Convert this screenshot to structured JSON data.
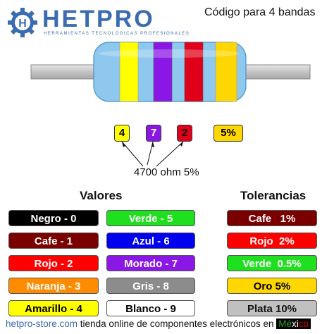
{
  "brand": {
    "name": "HETPRO",
    "tagline": "HERRAMIENTAS TECNOLÓGICAS PROFESIONALES",
    "logo_letter": "H"
  },
  "title": "Código para 4 bandas",
  "bands": {
    "digit1": {
      "label": "4",
      "color": "#ffff00"
    },
    "digit2": {
      "label": "7",
      "color": "#8a17e6"
    },
    "multiplier": {
      "label": "2",
      "color": "#e0001a"
    },
    "tolerance": {
      "label": "5%",
      "color": "#ffd700"
    }
  },
  "result": "4700 ohm 5%",
  "values_heading": "Valores",
  "tolerances_heading": "Tolerancias",
  "values": [
    {
      "label": "Negro - 0",
      "bg": "#000000",
      "fg": "#ffffff"
    },
    {
      "label": "Cafe - 1",
      "bg": "#7a0000",
      "fg": "#ffffff"
    },
    {
      "label": "Rojo - 2",
      "bg": "#ff0000",
      "fg": "#ffffff"
    },
    {
      "label": "Naranja - 3",
      "bg": "#ff8c00",
      "fg": "#ffffff"
    },
    {
      "label": "Amarillo - 4",
      "bg": "#ffff00",
      "fg": "#000000"
    },
    {
      "label": "Verde - 5",
      "bg": "#1fe01f",
      "fg": "#ffffff"
    },
    {
      "label": "Azul - 6",
      "bg": "#0000ee",
      "fg": "#ffffff"
    },
    {
      "label": "Morado - 7",
      "bg": "#8a17e6",
      "fg": "#ffffff"
    },
    {
      "label": "Gris - 8",
      "bg": "#8c8c8c",
      "fg": "#ffffff"
    },
    {
      "label": "Blanco - 9",
      "bg": "#ffffff",
      "fg": "#000000"
    }
  ],
  "tolerances": [
    {
      "label": "Cafe   1%",
      "bg": "#7a0000",
      "fg": "#ffffff"
    },
    {
      "label": "Rojo  2%",
      "bg": "#ff0000",
      "fg": "#ffffff"
    },
    {
      "label": "Verde  0.5%",
      "bg": "#1fe01f",
      "fg": "#ffffff"
    },
    {
      "label": "Oro 5%",
      "bg": "#ffd700",
      "fg": "#000000"
    },
    {
      "label": "Plata 10%",
      "bg": "#c0c0c0",
      "fg": "#111111"
    }
  ],
  "footer": {
    "site": "hetpro-store.com",
    "text": " tienda online de componentes electrónicos en ",
    "flag_a": "Mé",
    "flag_b": "xi",
    "flag_c": "co"
  },
  "colors": {
    "body": "#8ec8ee",
    "lead": "#c8c8c8",
    "brand": "#3b6bb0"
  }
}
